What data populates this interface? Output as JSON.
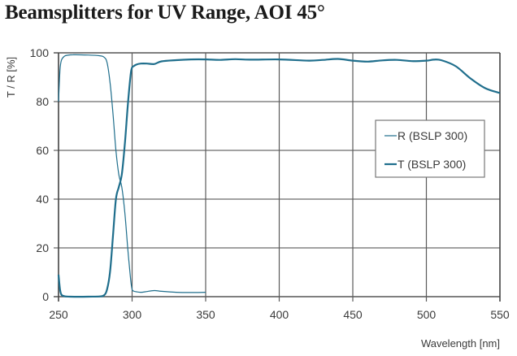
{
  "title": "Beamsplitters for UV Range, AOI 45°",
  "chart_data": {
    "type": "line",
    "title": "Beamsplitters for UV Range, AOI 45°",
    "xlabel": "Wavelength [nm]",
    "ylabel": "T / R [%]",
    "xlim": [
      250,
      550
    ],
    "ylim": [
      0,
      100
    ],
    "xticks": [
      250,
      300,
      350,
      400,
      450,
      500,
      550
    ],
    "yticks": [
      0,
      20,
      40,
      60,
      80,
      100
    ],
    "grid": true,
    "legend_position": "right-middle",
    "series": [
      {
        "name": "R (BSLP 300)",
        "color": "#1f6e8c",
        "width": 1.2,
        "x": [
          250,
          251,
          252,
          254,
          256,
          260,
          270,
          278,
          281,
          283,
          285,
          287,
          289,
          291,
          293,
          295,
          297,
          299,
          300,
          301,
          303,
          306,
          310,
          315,
          320,
          330,
          340,
          350
        ],
        "y": [
          80,
          93,
          97,
          98.6,
          99,
          99.2,
          99.1,
          98.8,
          98.2,
          96,
          88,
          75,
          60,
          50,
          45,
          35,
          20,
          7,
          3,
          2.3,
          2,
          1.8,
          2.1,
          2.5,
          2.2,
          1.8,
          1.7,
          1.8
        ]
      },
      {
        "name": "T (BSLP 300)",
        "color": "#1f6e8c",
        "width": 2.2,
        "x": [
          250,
          251,
          252,
          254,
          258,
          270,
          278,
          281,
          283,
          285,
          287,
          289,
          291,
          293,
          295,
          297,
          299,
          300,
          301,
          303,
          306,
          310,
          315,
          320,
          330,
          340,
          350,
          360,
          370,
          380,
          400,
          420,
          430,
          440,
          450,
          460,
          470,
          480,
          490,
          500,
          505,
          510,
          520,
          530,
          540,
          550
        ],
        "y": [
          9,
          3,
          0.8,
          0.2,
          0,
          0,
          0.1,
          0.6,
          3,
          10,
          25,
          40,
          45,
          50,
          62,
          78,
          91,
          94,
          94.5,
          95.2,
          95.6,
          95.6,
          95.4,
          96.5,
          97,
          97.3,
          97.3,
          97.1,
          97.4,
          97.2,
          97.3,
          96.8,
          97.1,
          97.5,
          96.8,
          96.4,
          96.9,
          97.1,
          96.6,
          96.8,
          97.2,
          97.0,
          94.5,
          89.5,
          85.5,
          83.5
        ]
      }
    ]
  }
}
